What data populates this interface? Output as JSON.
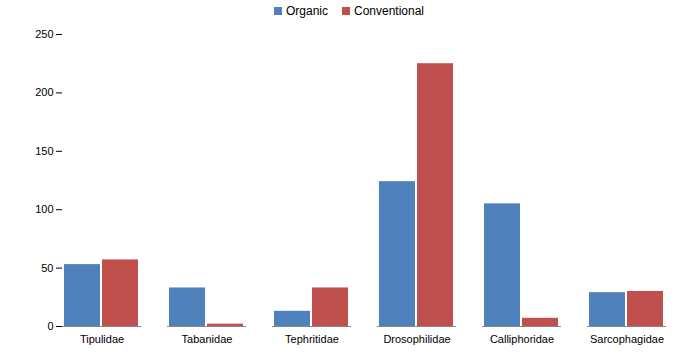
{
  "chart_data": {
    "type": "bar",
    "categories": [
      "Tipulidae",
      "Tabanidae",
      "Tephritidae",
      "Drosophilidae",
      "Calliphoridae",
      "Sarcophagidae"
    ],
    "series": [
      {
        "name": "Organic",
        "color": "#4f81bd",
        "values": [
          53,
          33,
          13,
          124,
          105,
          29
        ]
      },
      {
        "name": "Conventional",
        "color": "#c0504d",
        "values": [
          57,
          2,
          33,
          225,
          7,
          30
        ]
      }
    ],
    "ylim": [
      0,
      250
    ],
    "yticks": [
      0,
      50,
      100,
      150,
      200,
      250
    ],
    "grid": false,
    "legend": "top"
  }
}
